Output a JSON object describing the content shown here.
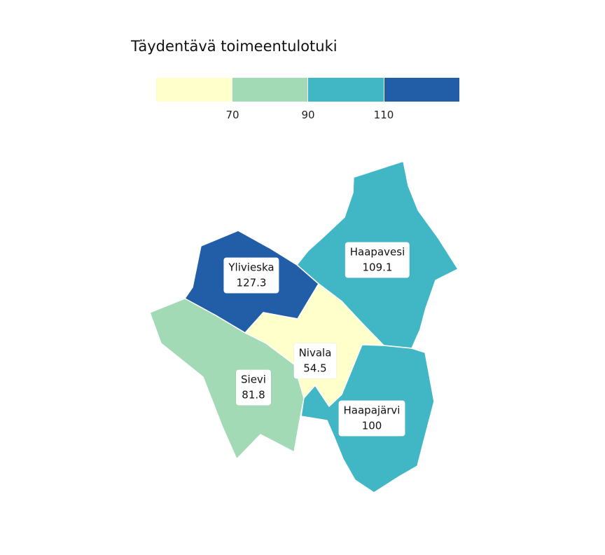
{
  "title": "Täydentävä toimeentulotuki",
  "legend": {
    "colors": [
      "#ffffcc",
      "#a1dab4",
      "#41b6c4",
      "#225ea8"
    ],
    "breaks": [
      "70",
      "90",
      "110"
    ]
  },
  "regions": [
    {
      "name": "Ylivieska",
      "value": "127.3",
      "color": "#225ea8"
    },
    {
      "name": "Haapavesi",
      "value": "109.1",
      "color": "#41b6c4"
    },
    {
      "name": "Nivala",
      "value": "54.5",
      "color": "#ffffcc"
    },
    {
      "name": "Sievi",
      "value": "81.8",
      "color": "#a1dab4"
    },
    {
      "name": "Haapajärvi",
      "value": "100",
      "color": "#41b6c4"
    }
  ]
}
